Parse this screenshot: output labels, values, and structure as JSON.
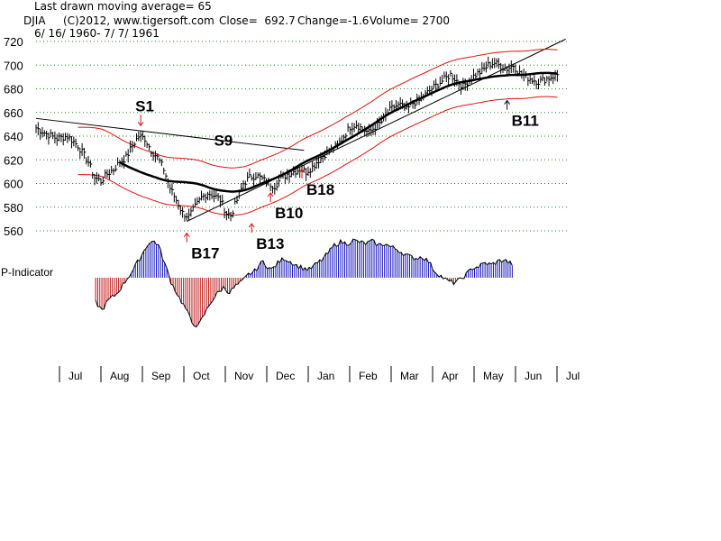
{
  "header": {
    "line1": "Last drawn moving average= 65",
    "ticker": "DJIA",
    "copyright": "(C)2012, www.tigersoft.com",
    "close": "Close=  692.7",
    "change": "Change=-1.6",
    "volume": "Volume= 2700",
    "daterange": "6/ 16/ 1960- 7/ 7/ 1961"
  },
  "chart_data": {
    "type": "line",
    "title": "DJIA",
    "ylim": [
      550,
      725
    ],
    "yticks": [
      720,
      700,
      680,
      660,
      640,
      620,
      600,
      580,
      560
    ],
    "months": [
      "Jul",
      "Aug",
      "Sep",
      "Oct",
      "Nov",
      "Dec",
      "Jan",
      "Feb",
      "Mar",
      "Apr",
      "May",
      "Jun",
      "Jul"
    ],
    "indicator_label": "P-Indicator",
    "price_keypoints": [
      [
        0,
        647
      ],
      [
        5,
        642
      ],
      [
        10,
        638
      ],
      [
        15,
        640
      ],
      [
        20,
        632
      ],
      [
        25,
        618
      ],
      [
        28,
        605
      ],
      [
        31,
        602
      ],
      [
        34,
        608
      ],
      [
        37,
        612
      ],
      [
        40,
        618
      ],
      [
        43,
        622
      ],
      [
        46,
        632
      ],
      [
        49,
        640
      ],
      [
        52,
        638
      ],
      [
        55,
        628
      ],
      [
        58,
        622
      ],
      [
        61,
        612
      ],
      [
        64,
        596
      ],
      [
        67,
        586
      ],
      [
        70,
        575
      ],
      [
        73,
        572
      ],
      [
        76,
        580
      ],
      [
        79,
        588
      ],
      [
        82,
        592
      ],
      [
        85,
        590
      ],
      [
        88,
        586
      ],
      [
        91,
        575
      ],
      [
        93,
        573
      ],
      [
        96,
        586
      ],
      [
        99,
        600
      ],
      [
        102,
        605
      ],
      [
        105,
        607
      ],
      [
        108,
        604
      ],
      [
        111,
        600
      ],
      [
        114,
        598
      ],
      [
        117,
        604
      ],
      [
        120,
        608
      ],
      [
        123,
        610
      ],
      [
        126,
        612
      ],
      [
        129,
        610
      ],
      [
        132,
        614
      ],
      [
        135,
        620
      ],
      [
        138,
        625
      ],
      [
        141,
        628
      ],
      [
        144,
        632
      ],
      [
        147,
        640
      ],
      [
        150,
        648
      ],
      [
        153,
        650
      ],
      [
        156,
        646
      ],
      [
        159,
        643
      ],
      [
        162,
        648
      ],
      [
        165,
        652
      ],
      [
        168,
        660
      ],
      [
        171,
        665
      ],
      [
        174,
        666
      ],
      [
        177,
        662
      ],
      [
        180,
        668
      ],
      [
        183,
        670
      ],
      [
        186,
        675
      ],
      [
        189,
        680
      ],
      [
        192,
        684
      ],
      [
        195,
        688
      ],
      [
        198,
        692
      ],
      [
        201,
        687
      ],
      [
        204,
        682
      ],
      [
        207,
        688
      ],
      [
        210,
        692
      ],
      [
        213,
        695
      ],
      [
        216,
        700
      ],
      [
        219,
        702
      ],
      [
        222,
        699
      ],
      [
        225,
        697
      ],
      [
        228,
        700
      ],
      [
        231,
        693
      ],
      [
        234,
        690
      ],
      [
        237,
        688
      ],
      [
        240,
        686
      ],
      [
        243,
        688
      ],
      [
        246,
        690
      ],
      [
        249,
        692
      ]
    ],
    "series": [
      {
        "name": "65-day moving average",
        "values_desc": "slow MA"
      },
      {
        "name": "Upper band",
        "values_desc": "MA + band"
      },
      {
        "name": "Lower band",
        "values_desc": "MA - band"
      }
    ],
    "indicator_keypoints": [
      [
        0,
        -30
      ],
      [
        3,
        -40
      ],
      [
        6,
        -28
      ],
      [
        10,
        -20
      ],
      [
        14,
        -5
      ],
      [
        18,
        10
      ],
      [
        22,
        28
      ],
      [
        25,
        42
      ],
      [
        28,
        45
      ],
      [
        30,
        40
      ],
      [
        32,
        25
      ],
      [
        34,
        10
      ],
      [
        36,
        -5
      ],
      [
        38,
        -15
      ],
      [
        40,
        -25
      ],
      [
        43,
        -38
      ],
      [
        46,
        -55
      ],
      [
        49,
        -60
      ],
      [
        52,
        -45
      ],
      [
        55,
        -30
      ],
      [
        58,
        -20
      ],
      [
        61,
        -12
      ],
      [
        64,
        -18
      ],
      [
        67,
        -10
      ],
      [
        70,
        -5
      ],
      [
        73,
        4
      ],
      [
        76,
        8
      ],
      [
        78,
        15
      ],
      [
        80,
        20
      ],
      [
        82,
        14
      ],
      [
        84,
        10
      ],
      [
        87,
        18
      ],
      [
        90,
        24
      ],
      [
        93,
        20
      ],
      [
        96,
        15
      ],
      [
        99,
        12
      ],
      [
        102,
        10
      ],
      [
        105,
        16
      ],
      [
        108,
        22
      ],
      [
        111,
        30
      ],
      [
        114,
        40
      ],
      [
        117,
        44
      ],
      [
        120,
        42
      ],
      [
        123,
        46
      ],
      [
        126,
        44
      ],
      [
        129,
        42
      ],
      [
        132,
        45
      ],
      [
        135,
        40
      ],
      [
        138,
        42
      ],
      [
        141,
        38
      ],
      [
        144,
        35
      ],
      [
        147,
        30
      ],
      [
        150,
        26
      ],
      [
        153,
        24
      ],
      [
        156,
        26
      ],
      [
        159,
        20
      ],
      [
        162,
        8
      ],
      [
        165,
        2
      ],
      [
        168,
        -4
      ],
      [
        171,
        -6
      ],
      [
        174,
        -3
      ],
      [
        177,
        4
      ],
      [
        180,
        12
      ],
      [
        183,
        14
      ],
      [
        186,
        18
      ],
      [
        189,
        16
      ],
      [
        192,
        20
      ],
      [
        195,
        22
      ],
      [
        198,
        18
      ],
      [
        201,
        14
      ],
      [
        204,
        12
      ],
      [
        207,
        -5
      ],
      [
        210,
        -18
      ],
      [
        213,
        -28
      ],
      [
        216,
        -35
      ],
      [
        219,
        -30
      ],
      [
        222,
        -25
      ]
    ],
    "signals": [
      {
        "label": "S1",
        "dir": "down",
        "x": 50,
        "price": 652
      },
      {
        "label": "S9",
        "dir": "none",
        "x": 85,
        "price": 632
      },
      {
        "label": "B17",
        "dir": "up",
        "x": 72,
        "price": 558
      },
      {
        "label": "B13",
        "dir": "up",
        "x": 103,
        "price": 566
      },
      {
        "label": "B10",
        "dir": "up",
        "x": 112,
        "price": 592
      },
      {
        "label": "B18",
        "dir": "up",
        "x": 127,
        "price": 612
      },
      {
        "label": "B11",
        "dir": "up",
        "x": 225,
        "price": 670
      }
    ],
    "trendlines": [
      {
        "name": "down-trend",
        "from": [
          0,
          655
        ],
        "to": [
          128,
          628
        ]
      },
      {
        "name": "up-trend",
        "from": [
          72,
          568
        ],
        "to": [
          253,
          722
        ]
      }
    ]
  }
}
